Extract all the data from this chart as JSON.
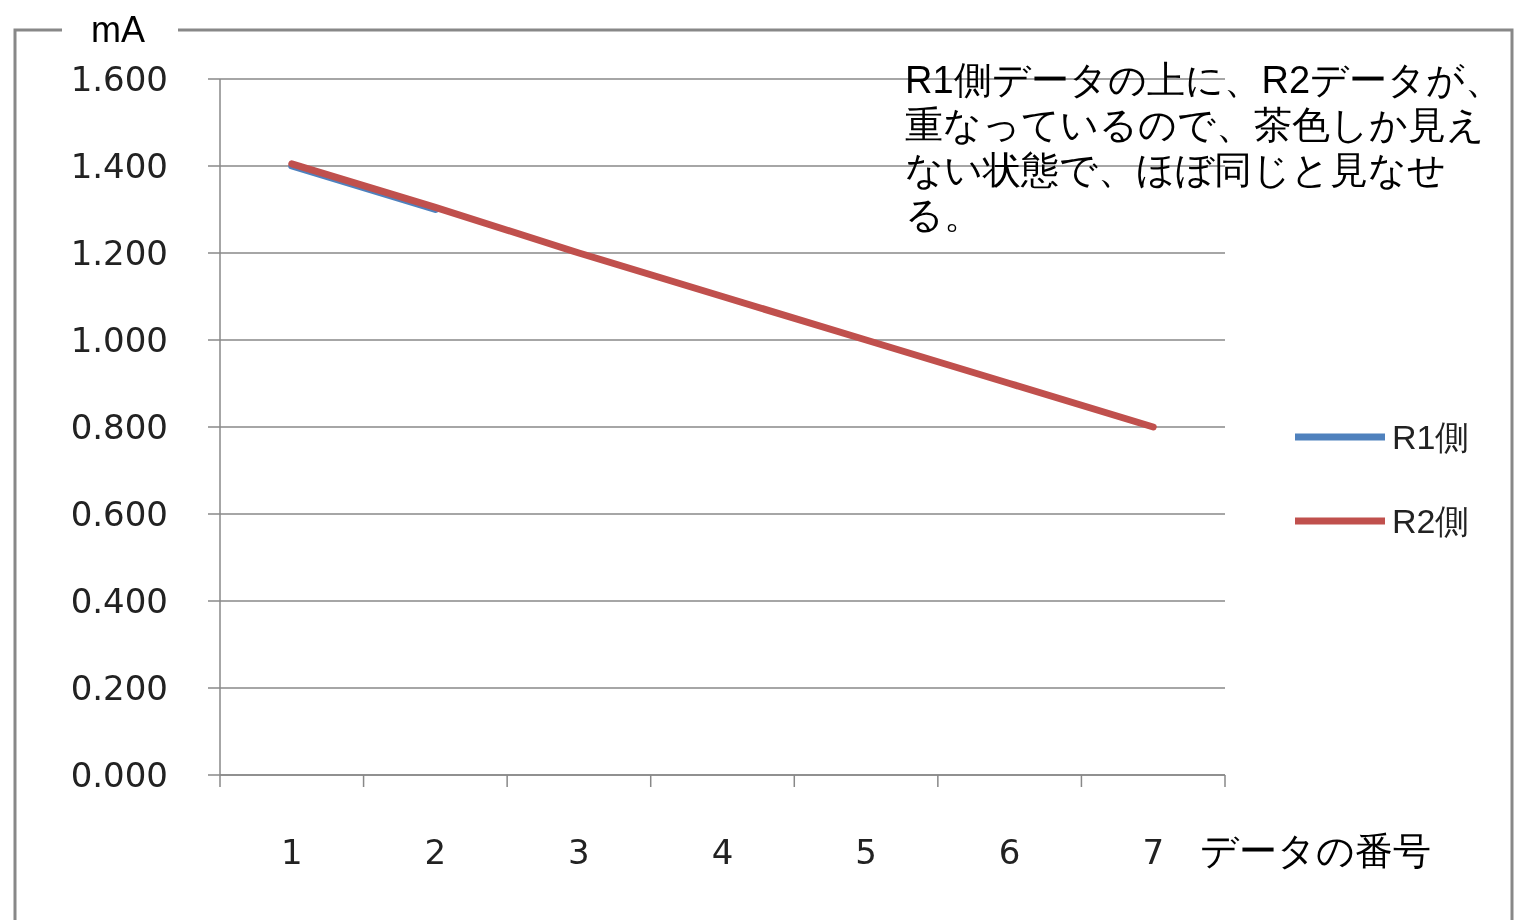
{
  "chart_data": {
    "type": "line",
    "ylabel": "mA",
    "xlabel": "データの番号",
    "categories": [
      "1",
      "2",
      "3",
      "4",
      "5",
      "6",
      "7"
    ],
    "series": [
      {
        "name": "R1側",
        "color": "#4f81bd",
        "values": [
          1.4,
          1.3,
          null,
          null,
          null,
          null,
          null
        ]
      },
      {
        "name": "R2側",
        "color": "#c0504d",
        "values": [
          1.405,
          1.305,
          1.2,
          1.1,
          1.0,
          0.9,
          0.8
        ]
      }
    ],
    "ylim": [
      0,
      1.6
    ],
    "yticks": [
      {
        "value": 0,
        "label": "0.000"
      },
      {
        "value": 0.2,
        "label": "0.200"
      },
      {
        "value": 0.4,
        "label": "0.400"
      },
      {
        "value": 0.6,
        "label": "0.600"
      },
      {
        "value": 0.8,
        "label": "0.800"
      },
      {
        "value": 1.0,
        "label": "1.000"
      },
      {
        "value": 1.2,
        "label": "1.200"
      },
      {
        "value": 1.4,
        "label": "1.400"
      },
      {
        "value": 1.6,
        "label": "1.600"
      }
    ],
    "grid": "y",
    "legend": "right",
    "line_style": "solid",
    "annotations": [
      "R1側データの上に、R2データが、重なっているので、茶色しか見えない状態で、ほぼ同じと見なせる。"
    ]
  }
}
